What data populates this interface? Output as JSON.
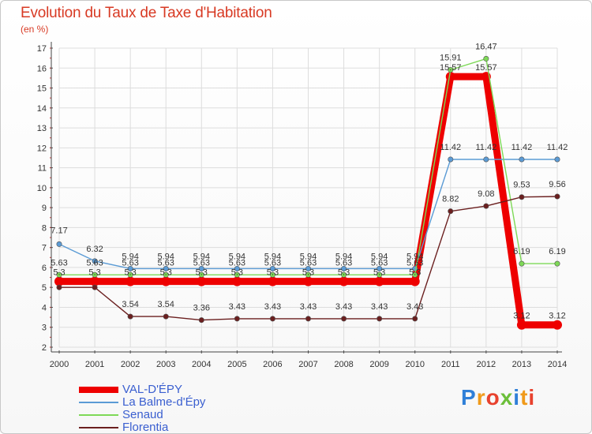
{
  "title": "Evolution du Taux de Taxe d'Habitation",
  "unit_label": "(en %)",
  "brand": {
    "text": "Proxiti",
    "letters": [
      "P",
      "r",
      "o",
      "x",
      "i",
      "t",
      "i"
    ],
    "colors": [
      "#2f7fd8",
      "#f09a1a",
      "#e8422e",
      "#6cbf3a",
      "#2f7fd8",
      "#f09a1a",
      "#e8422e"
    ]
  },
  "colors": {
    "title": "#d83a24",
    "axis": "#333333",
    "grid": "#dddddd",
    "legend_text": "#3a5fd0"
  },
  "chart_data": {
    "type": "line",
    "title": "Evolution du Taux de Taxe d'Habitation",
    "ylabel": "(en %)",
    "xlabel": "",
    "ylim": [
      2,
      17
    ],
    "yticks": [
      2,
      3,
      4,
      5,
      6,
      7,
      8,
      9,
      10,
      11,
      12,
      13,
      14,
      15,
      16,
      17
    ],
    "categories": [
      "2000",
      "2001",
      "2002",
      "2003",
      "2004",
      "2005",
      "2006",
      "2007",
      "2008",
      "2009",
      "2010",
      "2011",
      "2012",
      "2013",
      "2014"
    ],
    "series": [
      {
        "name": "VAL-D'ÉPY",
        "color": "#ee0000",
        "thick": true,
        "values": [
          5.3,
          5.3,
          5.3,
          5.3,
          5.3,
          5.3,
          5.3,
          5.3,
          5.3,
          5.3,
          5.3,
          15.57,
          15.57,
          3.12,
          3.12
        ]
      },
      {
        "name": "La Balme-d'Épy",
        "color": "#5b9bd5",
        "thick": false,
        "values": [
          7.17,
          6.32,
          5.94,
          5.94,
          5.94,
          5.94,
          5.94,
          5.94,
          5.94,
          5.94,
          5.94,
          11.42,
          11.42,
          11.42,
          11.42
        ]
      },
      {
        "name": "Senaud",
        "color": "#7ed957",
        "thick": false,
        "values": [
          5.63,
          5.63,
          5.63,
          5.63,
          5.63,
          5.63,
          5.63,
          5.63,
          5.63,
          5.63,
          5.63,
          15.91,
          16.47,
          6.19,
          6.19
        ]
      },
      {
        "name": "Florentia",
        "color": "#6b1f1f",
        "thick": false,
        "values": [
          5.0,
          5.0,
          3.54,
          3.54,
          3.36,
          3.43,
          3.43,
          3.43,
          3.43,
          3.43,
          3.43,
          8.82,
          9.08,
          9.53,
          9.56
        ]
      }
    ],
    "data_labels": [
      {
        "text": "5.3",
        "series": 0,
        "index": 0
      },
      {
        "text": "5.3",
        "series": 0,
        "index": 1
      },
      {
        "text": "5.3",
        "series": 0,
        "index": 2
      },
      {
        "text": "5.3",
        "series": 0,
        "index": 3
      },
      {
        "text": "5.3",
        "series": 0,
        "index": 4
      },
      {
        "text": "5.3",
        "series": 0,
        "index": 5
      },
      {
        "text": "5.3",
        "series": 0,
        "index": 6
      },
      {
        "text": "5.3",
        "series": 0,
        "index": 7
      },
      {
        "text": "5.3",
        "series": 0,
        "index": 8
      },
      {
        "text": "5.3",
        "series": 0,
        "index": 9
      },
      {
        "text": "5.3",
        "series": 0,
        "index": 10
      },
      {
        "text": "15.57",
        "series": 0,
        "index": 11
      },
      {
        "text": "15.57",
        "series": 0,
        "index": 12
      },
      {
        "text": "3.12",
        "series": 0,
        "index": 13
      },
      {
        "text": "3.12",
        "series": 0,
        "index": 14
      },
      {
        "text": "7.17",
        "series": 1,
        "index": 0
      },
      {
        "text": "6.32",
        "series": 1,
        "index": 1
      },
      {
        "text": "5.94",
        "series": 1,
        "index": 2
      },
      {
        "text": "5.94",
        "series": 1,
        "index": 3
      },
      {
        "text": "5.94",
        "series": 1,
        "index": 4
      },
      {
        "text": "5.94",
        "series": 1,
        "index": 5
      },
      {
        "text": "5.94",
        "series": 1,
        "index": 6
      },
      {
        "text": "5.94",
        "series": 1,
        "index": 7
      },
      {
        "text": "5.94",
        "series": 1,
        "index": 8
      },
      {
        "text": "5.94",
        "series": 1,
        "index": 9
      },
      {
        "text": "5.94",
        "series": 1,
        "index": 10
      },
      {
        "text": "11.42",
        "series": 1,
        "index": 11
      },
      {
        "text": "11.42",
        "series": 1,
        "index": 12
      },
      {
        "text": "11.42",
        "series": 1,
        "index": 13
      },
      {
        "text": "11.42",
        "series": 1,
        "index": 14
      },
      {
        "text": "5.63",
        "series": 2,
        "index": 0
      },
      {
        "text": "5.63",
        "series": 2,
        "index": 1
      },
      {
        "text": "5.63",
        "series": 2,
        "index": 2
      },
      {
        "text": "5.63",
        "series": 2,
        "index": 3
      },
      {
        "text": "5.63",
        "series": 2,
        "index": 4
      },
      {
        "text": "5.63",
        "series": 2,
        "index": 5
      },
      {
        "text": "5.63",
        "series": 2,
        "index": 6
      },
      {
        "text": "5.63",
        "series": 2,
        "index": 7
      },
      {
        "text": "5.63",
        "series": 2,
        "index": 8
      },
      {
        "text": "5.63",
        "series": 2,
        "index": 9
      },
      {
        "text": "5.63",
        "series": 2,
        "index": 10
      },
      {
        "text": "15.91",
        "series": 2,
        "index": 11
      },
      {
        "text": "16.47",
        "series": 2,
        "index": 12
      },
      {
        "text": "6.19",
        "series": 2,
        "index": 13
      },
      {
        "text": "6.19",
        "series": 2,
        "index": 14
      },
      {
        "text": "3.54",
        "series": 3,
        "index": 2
      },
      {
        "text": "3.54",
        "series": 3,
        "index": 3
      },
      {
        "text": "3.36",
        "series": 3,
        "index": 4
      },
      {
        "text": "3.43",
        "series": 3,
        "index": 5
      },
      {
        "text": "3.43",
        "series": 3,
        "index": 6
      },
      {
        "text": "3.43",
        "series": 3,
        "index": 7
      },
      {
        "text": "3.43",
        "series": 3,
        "index": 8
      },
      {
        "text": "3.43",
        "series": 3,
        "index": 9
      },
      {
        "text": "3.43",
        "series": 3,
        "index": 10
      },
      {
        "text": "8.82",
        "series": 3,
        "index": 11
      },
      {
        "text": "9.08",
        "series": 3,
        "index": 12
      },
      {
        "text": "9.53",
        "series": 3,
        "index": 13
      },
      {
        "text": "9.56",
        "series": 3,
        "index": 14
      }
    ],
    "legend": [
      "VAL-D'ÉPY",
      "La Balme-d'Épy",
      "Senaud",
      "Florentia"
    ],
    "legend_position": "bottom-left",
    "grid": true
  }
}
